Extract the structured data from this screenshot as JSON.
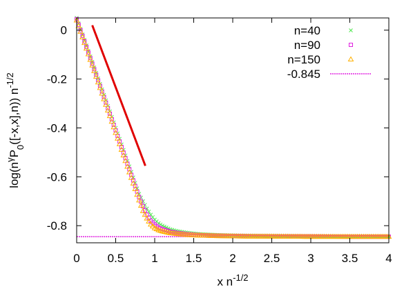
{
  "chart_data": {
    "type": "scatter",
    "xlim": [
      0,
      4
    ],
    "ylim": [
      -0.87,
      0.05
    ],
    "grid": false,
    "legend_position": "top-right",
    "xticks": [
      "0",
      "0.5",
      "1",
      "1.5",
      "2",
      "2.5",
      "3",
      "3.5",
      "4"
    ],
    "yticks": [
      "0",
      "-0.2",
      "-0.4",
      "-0.6",
      "-0.8"
    ],
    "xticks_values": [
      0,
      0.5,
      1,
      1.5,
      2,
      2.5,
      3,
      3.5,
      4
    ],
    "yticks_values": [
      0,
      -0.2,
      -0.4,
      -0.6,
      -0.8
    ],
    "xlabel": {
      "base": "x n",
      "sup": "-1/2"
    },
    "ylabel": {
      "a": "log(n",
      "sup1": "γ",
      "b": "P",
      "sub": "0",
      "c": "([-x,x],n)) n",
      "sup2": "-1/2"
    },
    "series": [
      {
        "name": "n=40",
        "marker": "cross",
        "color": "#55e855",
        "x": [
          0,
          0.1,
          0.2,
          0.3,
          0.4,
          0.5,
          0.6,
          0.7,
          0.8,
          0.85,
          0.9,
          0.95,
          1.0,
          1.05,
          1.1,
          1.2,
          1.3,
          1.4,
          1.5,
          1.6,
          1.8,
          2.0,
          2.2,
          2.5,
          3.0,
          3.5,
          4.0
        ],
        "y": [
          0.05,
          -0.04,
          -0.13,
          -0.22,
          -0.31,
          -0.4,
          -0.49,
          -0.58,
          -0.67,
          -0.7,
          -0.73,
          -0.755,
          -0.775,
          -0.79,
          -0.8,
          -0.815,
          -0.823,
          -0.828,
          -0.832,
          -0.835,
          -0.838,
          -0.84,
          -0.841,
          -0.842,
          -0.843,
          -0.844,
          -0.844
        ]
      },
      {
        "name": "n=90",
        "marker": "square",
        "color": "#e020e0",
        "x": [
          0,
          0.1,
          0.2,
          0.3,
          0.4,
          0.5,
          0.6,
          0.7,
          0.8,
          0.85,
          0.9,
          0.95,
          1.0,
          1.05,
          1.1,
          1.2,
          1.3,
          1.4,
          1.5,
          1.6,
          1.8,
          2.0,
          2.2,
          2.5,
          3.0,
          3.5,
          4.0
        ],
        "y": [
          0.045,
          -0.046,
          -0.137,
          -0.228,
          -0.319,
          -0.41,
          -0.501,
          -0.592,
          -0.683,
          -0.72,
          -0.755,
          -0.78,
          -0.795,
          -0.808,
          -0.815,
          -0.825,
          -0.83,
          -0.834,
          -0.837,
          -0.839,
          -0.841,
          -0.842,
          -0.843,
          -0.844,
          -0.844,
          -0.845,
          -0.845
        ]
      },
      {
        "name": "n=150",
        "marker": "triangle",
        "color": "#ffb000",
        "x": [
          0,
          0.1,
          0.2,
          0.3,
          0.4,
          0.5,
          0.6,
          0.7,
          0.8,
          0.85,
          0.9,
          0.95,
          1.0,
          1.05,
          1.1,
          1.2,
          1.3,
          1.4,
          1.5,
          1.6,
          1.8,
          2.0,
          2.2,
          2.5,
          3.0,
          3.5,
          4.0
        ],
        "y": [
          0.04,
          -0.052,
          -0.144,
          -0.236,
          -0.328,
          -0.42,
          -0.512,
          -0.604,
          -0.696,
          -0.74,
          -0.77,
          -0.795,
          -0.81,
          -0.818,
          -0.823,
          -0.83,
          -0.834,
          -0.837,
          -0.839,
          -0.84,
          -0.842,
          -0.843,
          -0.844,
          -0.844,
          -0.845,
          -0.845,
          -0.845
        ]
      }
    ],
    "hline": {
      "name": "-0.845",
      "y": -0.845,
      "color": "#e020e0"
    },
    "red_line": {
      "color": "#e00000",
      "x": [
        0.2,
        0.88
      ],
      "y": [
        0.02,
        -0.555
      ]
    }
  }
}
